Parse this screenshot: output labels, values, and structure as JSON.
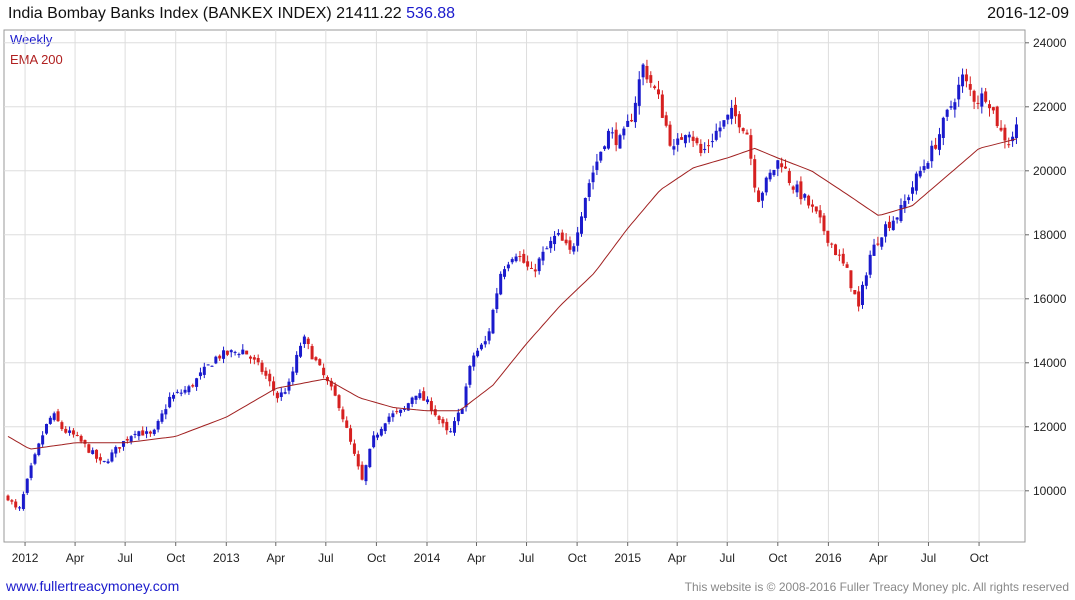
{
  "header": {
    "title": "India Bombay Banks Index (BANKEX INDEX) 21411.22",
    "change": "536.88",
    "date": "2016-12-09"
  },
  "legend": {
    "weekly": "Weekly",
    "ema": "EMA 200"
  },
  "footer": {
    "left": "www.fullertreacymoney.com",
    "right": "This website is © 2008-2016 Fuller Treacy Money plc. All rights reserved"
  },
  "colors": {
    "up": "#1a1acc",
    "down": "#d62020",
    "ema": "#a02020",
    "grid": "#dddddd"
  },
  "chart_data": {
    "type": "candlestick",
    "title": "India Bombay Banks Index (BANKEX INDEX) 21411.22 536.88",
    "timeframe": "Weekly",
    "x_range": [
      "2011-12-01",
      "2016-12-09"
    ],
    "ylim": [
      8400,
      24400
    ],
    "y_ticks": [
      10000,
      12000,
      14000,
      16000,
      18000,
      20000,
      22000,
      24000
    ],
    "x_ticks": [
      {
        "label": "2012",
        "date": "2012-01-01"
      },
      {
        "label": "Apr",
        "date": "2012-04-01"
      },
      {
        "label": "Jul",
        "date": "2012-07-01"
      },
      {
        "label": "Oct",
        "date": "2012-10-01"
      },
      {
        "label": "2013",
        "date": "2013-01-01"
      },
      {
        "label": "Apr",
        "date": "2013-04-01"
      },
      {
        "label": "Jul",
        "date": "2013-07-01"
      },
      {
        "label": "Oct",
        "date": "2013-10-01"
      },
      {
        "label": "2014",
        "date": "2014-01-01"
      },
      {
        "label": "Apr",
        "date": "2014-04-01"
      },
      {
        "label": "Jul",
        "date": "2014-07-01"
      },
      {
        "label": "Oct",
        "date": "2014-10-01"
      },
      {
        "label": "2015",
        "date": "2015-01-01"
      },
      {
        "label": "Apr",
        "date": "2015-04-01"
      },
      {
        "label": "Jul",
        "date": "2015-07-01"
      },
      {
        "label": "Oct",
        "date": "2015-10-01"
      },
      {
        "label": "2016",
        "date": "2016-01-01"
      },
      {
        "label": "Apr",
        "date": "2016-04-01"
      },
      {
        "label": "Jul",
        "date": "2016-07-01"
      },
      {
        "label": "Oct",
        "date": "2016-10-01"
      }
    ],
    "grid": true,
    "price_anchors": [
      {
        "date": "2011-12-01",
        "close": 9800
      },
      {
        "date": "2011-12-20",
        "close": 9300
      },
      {
        "date": "2012-01-10",
        "close": 10600
      },
      {
        "date": "2012-02-05",
        "close": 11900
      },
      {
        "date": "2012-02-20",
        "close": 12400
      },
      {
        "date": "2012-03-10",
        "close": 11900
      },
      {
        "date": "2012-04-01",
        "close": 11700
      },
      {
        "date": "2012-05-01",
        "close": 11200
      },
      {
        "date": "2012-05-20",
        "close": 10800
      },
      {
        "date": "2012-06-15",
        "close": 11300
      },
      {
        "date": "2012-07-20",
        "close": 11900
      },
      {
        "date": "2012-08-20",
        "close": 11700
      },
      {
        "date": "2012-09-20",
        "close": 12900
      },
      {
        "date": "2012-10-25",
        "close": 13200
      },
      {
        "date": "2012-12-15",
        "close": 14200
      },
      {
        "date": "2013-02-01",
        "close": 14400
      },
      {
        "date": "2013-03-10",
        "close": 13700
      },
      {
        "date": "2013-04-05",
        "close": 12900
      },
      {
        "date": "2013-04-25",
        "close": 13300
      },
      {
        "date": "2013-05-20",
        "close": 14800
      },
      {
        "date": "2013-06-20",
        "close": 13800
      },
      {
        "date": "2013-07-25",
        "close": 12700
      },
      {
        "date": "2013-08-20",
        "close": 11200
      },
      {
        "date": "2013-09-05",
        "close": 10300
      },
      {
        "date": "2013-09-25",
        "close": 11600
      },
      {
        "date": "2013-10-20",
        "close": 12300
      },
      {
        "date": "2013-11-20",
        "close": 12500
      },
      {
        "date": "2013-12-10",
        "close": 13100
      },
      {
        "date": "2014-01-10",
        "close": 12600
      },
      {
        "date": "2014-02-10",
        "close": 11700
      },
      {
        "date": "2014-03-05",
        "close": 12600
      },
      {
        "date": "2014-03-25",
        "close": 14200
      },
      {
        "date": "2014-04-20",
        "close": 14700
      },
      {
        "date": "2014-05-16",
        "close": 16900
      },
      {
        "date": "2014-06-10",
        "close": 17500
      },
      {
        "date": "2014-07-10",
        "close": 16800
      },
      {
        "date": "2014-08-01",
        "close": 17400
      },
      {
        "date": "2014-08-25",
        "close": 18000
      },
      {
        "date": "2014-09-20",
        "close": 17400
      },
      {
        "date": "2014-10-20",
        "close": 19500
      },
      {
        "date": "2014-11-25",
        "close": 21200
      },
      {
        "date": "2014-12-20",
        "close": 20900
      },
      {
        "date": "2015-01-10",
        "close": 21800
      },
      {
        "date": "2015-01-28",
        "close": 23300
      },
      {
        "date": "2015-02-25",
        "close": 22300
      },
      {
        "date": "2015-03-25",
        "close": 20600
      },
      {
        "date": "2015-04-20",
        "close": 21400
      },
      {
        "date": "2015-05-15",
        "close": 20500
      },
      {
        "date": "2015-06-10",
        "close": 21200
      },
      {
        "date": "2015-07-10",
        "close": 21800
      },
      {
        "date": "2015-08-05",
        "close": 21300
      },
      {
        "date": "2015-08-25",
        "close": 19100
      },
      {
        "date": "2015-09-15",
        "close": 19800
      },
      {
        "date": "2015-10-05",
        "close": 20400
      },
      {
        "date": "2015-10-25",
        "close": 19600
      },
      {
        "date": "2015-11-15",
        "close": 19200
      },
      {
        "date": "2015-12-10",
        "close": 18600
      },
      {
        "date": "2016-01-10",
        "close": 17600
      },
      {
        "date": "2016-02-05",
        "close": 16800
      },
      {
        "date": "2016-02-25",
        "close": 15700
      },
      {
        "date": "2016-03-15",
        "close": 17300
      },
      {
        "date": "2016-04-10",
        "close": 18200
      },
      {
        "date": "2016-05-10",
        "close": 18700
      },
      {
        "date": "2016-06-10",
        "close": 19800
      },
      {
        "date": "2016-07-10",
        "close": 20700
      },
      {
        "date": "2016-08-05",
        "close": 21800
      },
      {
        "date": "2016-09-01",
        "close": 22900
      },
      {
        "date": "2016-09-25",
        "close": 22200
      },
      {
        "date": "2016-10-15",
        "close": 22400
      },
      {
        "date": "2016-11-10",
        "close": 21200
      },
      {
        "date": "2016-11-25",
        "close": 20900
      },
      {
        "date": "2016-12-09",
        "close": 21411
      }
    ],
    "ema_anchors": [
      {
        "date": "2011-12-01",
        "value": 11700
      },
      {
        "date": "2012-01-10",
        "value": 11300
      },
      {
        "date": "2012-04-01",
        "value": 11500
      },
      {
        "date": "2012-07-01",
        "value": 11500
      },
      {
        "date": "2012-10-01",
        "value": 11700
      },
      {
        "date": "2013-01-01",
        "value": 12300
      },
      {
        "date": "2013-04-01",
        "value": 13200
      },
      {
        "date": "2013-07-01",
        "value": 13500
      },
      {
        "date": "2013-09-01",
        "value": 12900
      },
      {
        "date": "2013-11-01",
        "value": 12600
      },
      {
        "date": "2014-01-01",
        "value": 12500
      },
      {
        "date": "2014-03-01",
        "value": 12500
      },
      {
        "date": "2014-05-01",
        "value": 13300
      },
      {
        "date": "2014-07-01",
        "value": 14600
      },
      {
        "date": "2014-09-01",
        "value": 15800
      },
      {
        "date": "2014-11-01",
        "value": 16800
      },
      {
        "date": "2015-01-01",
        "value": 18200
      },
      {
        "date": "2015-03-01",
        "value": 19400
      },
      {
        "date": "2015-05-01",
        "value": 20100
      },
      {
        "date": "2015-07-01",
        "value": 20400
      },
      {
        "date": "2015-08-20",
        "value": 20700
      },
      {
        "date": "2015-10-01",
        "value": 20400
      },
      {
        "date": "2015-12-01",
        "value": 20000
      },
      {
        "date": "2016-02-01",
        "value": 19300
      },
      {
        "date": "2016-04-01",
        "value": 18600
      },
      {
        "date": "2016-06-01",
        "value": 18900
      },
      {
        "date": "2016-08-01",
        "value": 19800
      },
      {
        "date": "2016-10-01",
        "value": 20700
      },
      {
        "date": "2016-12-09",
        "value": 21000
      }
    ]
  }
}
